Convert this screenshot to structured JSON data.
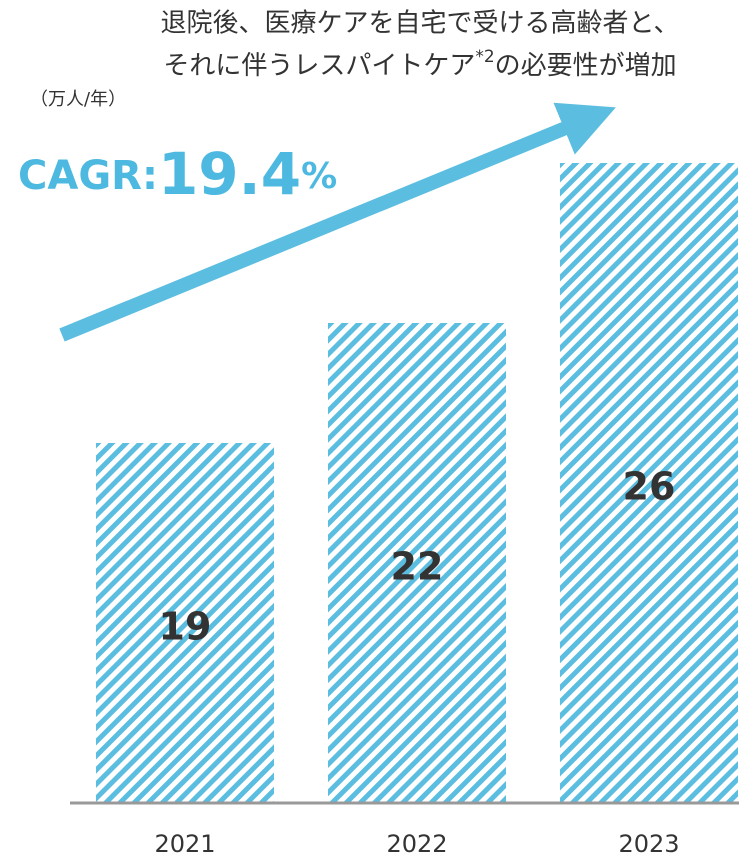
{
  "chart_data": {
    "type": "bar",
    "title": [
      "退院後、医療ケアを自宅で受ける高齢者と、",
      [
        "それに伴うレスパイトケア",
        "*2",
        "の必要性が増加"
      ]
    ],
    "y_unit": "（万人/年）",
    "cagr": {
      "label": "CAGR:",
      "value": 19.4,
      "unit": "%"
    },
    "categories": [
      "2021",
      "2022",
      "2023"
    ],
    "values": [
      19,
      22,
      26
    ],
    "color": "#5bbde0",
    "ylim": [
      10,
      27
    ]
  }
}
